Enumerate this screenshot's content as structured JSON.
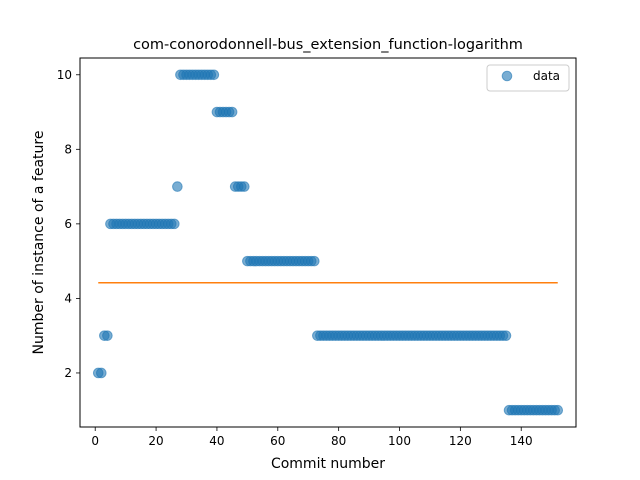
{
  "chart_data": {
    "type": "scatter",
    "title": "com-conorodonnell-bus_extension_function-logarithm",
    "xlabel": "Commit number",
    "ylabel": "Number of instance of a feature",
    "xlim": [
      -5,
      158
    ],
    "ylim": [
      0.55,
      10.45
    ],
    "xticks": [
      0,
      20,
      40,
      60,
      80,
      100,
      120,
      140
    ],
    "yticks": [
      2,
      4,
      6,
      8,
      10
    ],
    "legend": {
      "position": "top-right",
      "entries": [
        "data"
      ]
    },
    "colors": {
      "data": "#1f77b4",
      "fit": "#ff7f0e"
    },
    "segments": [
      {
        "x_start": 1,
        "x_end": 2,
        "y": 2
      },
      {
        "x_start": 3,
        "x_end": 4,
        "y": 3
      },
      {
        "x_start": 5,
        "x_end": 26,
        "y": 6
      },
      {
        "x_start": 27,
        "x_end": 27,
        "y": 7
      },
      {
        "x_start": 28,
        "x_end": 39,
        "y": 10
      },
      {
        "x_start": 40,
        "x_end": 45,
        "y": 9
      },
      {
        "x_start": 46,
        "x_end": 49,
        "y": 7
      },
      {
        "x_start": 50,
        "x_end": 72,
        "y": 5
      },
      {
        "x_start": 73,
        "x_end": 135,
        "y": 3
      },
      {
        "x_start": 136,
        "x_end": 152,
        "y": 1
      }
    ],
    "fit_line": {
      "x": [
        1,
        152
      ],
      "y": [
        4.42,
        4.42
      ]
    }
  }
}
